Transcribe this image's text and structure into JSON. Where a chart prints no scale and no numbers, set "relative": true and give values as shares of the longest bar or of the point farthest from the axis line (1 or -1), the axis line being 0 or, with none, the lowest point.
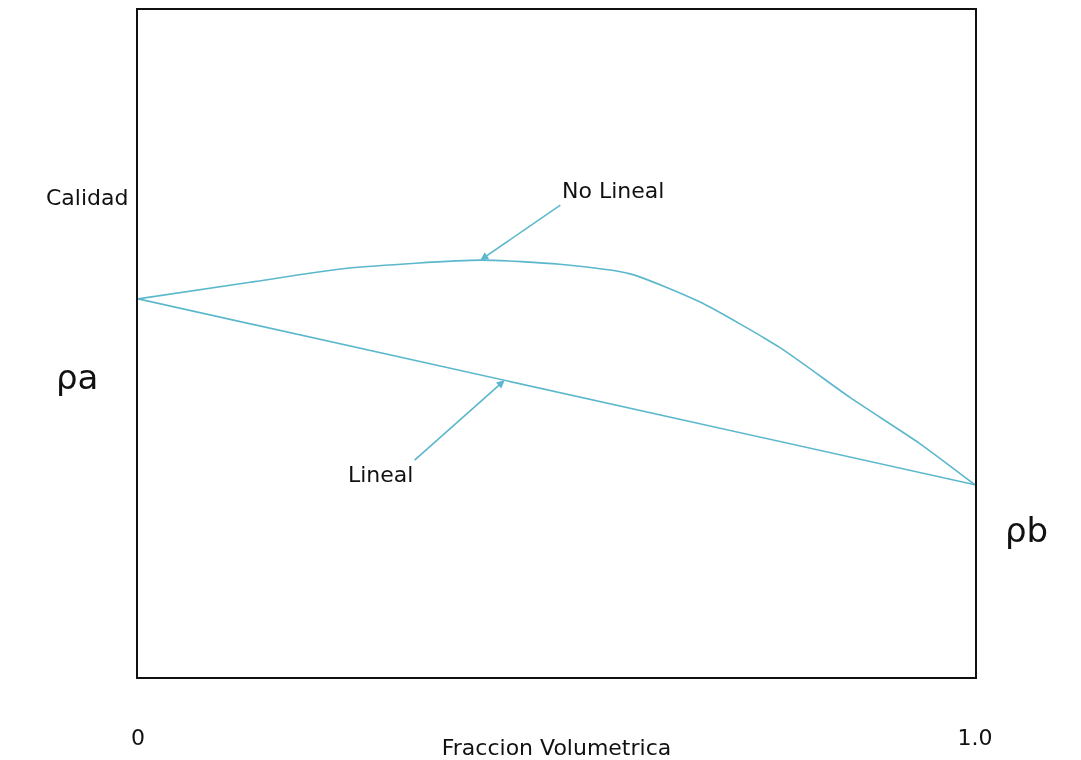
{
  "chart_data": {
    "type": "line",
    "relative": true,
    "xlabel": "Fraccion Volumetrica",
    "ylabel": "Calidad",
    "xlim": [
      0,
      1
    ],
    "xticks": [
      0,
      {
        "value": 1,
        "label": "1.0"
      }
    ],
    "grid": false,
    "marker": "none",
    "line_style": "solid",
    "series": [
      {
        "color": "#5bb8cc",
        "x": [
          0,
          0.134,
          0.253,
          0.409,
          0.504,
          0.588,
          0.671,
          0.767,
          0.851,
          0.934,
          1
        ],
        "values": [
          0.907,
          0.947,
          0.981,
          1,
          0.99,
          0.967,
          0.9,
          0.79,
          0.67,
          0.56,
          0.461
        ]
      },
      {
        "color": "#5bb8cc",
        "x": [
          0,
          1
        ],
        "values": [
          0.907,
          0.461
        ]
      }
    ],
    "annotations": [
      {
        "text": "No Lineal",
        "x": 0.409,
        "y": 1
      },
      {
        "text": "Lineal",
        "x": 0.438,
        "y": 0.712
      },
      {
        "text": "ρa",
        "x": 0,
        "y": 0.907
      },
      {
        "text": "ρb",
        "x": 1,
        "y": 0.461
      }
    ]
  }
}
